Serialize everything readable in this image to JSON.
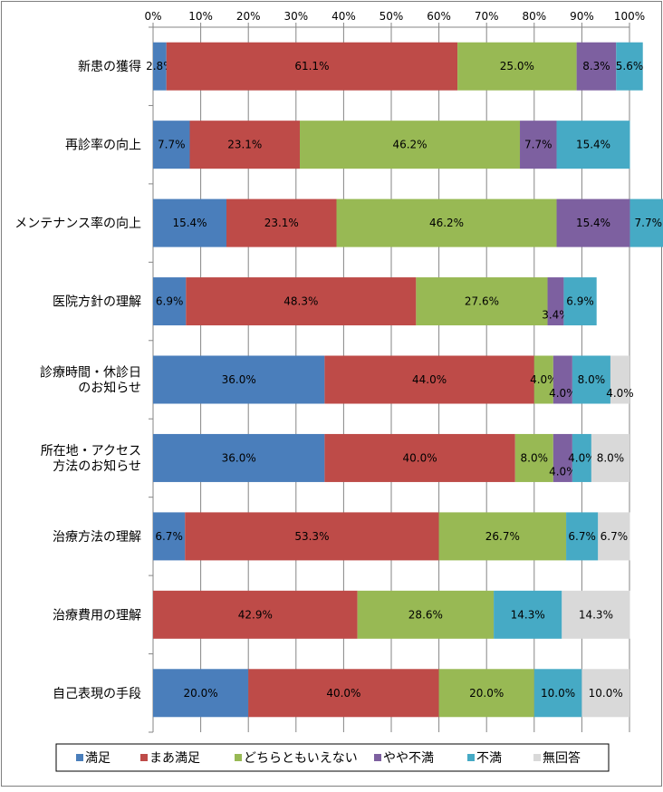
{
  "chart_data": {
    "type": "bar",
    "orientation": "horizontal",
    "stacked": "percent",
    "title": "",
    "xlabel": "",
    "ylabel": "",
    "xlim": [
      0,
      100
    ],
    "x_ticks": [
      "0%",
      "10%",
      "20%",
      "30%",
      "40%",
      "50%",
      "60%",
      "70%",
      "80%",
      "90%",
      "100%"
    ],
    "x_axis_position": "top",
    "grid": "vertical",
    "legend_position": "bottom",
    "categories": [
      [
        "新患の獲得"
      ],
      [
        "再診率の向上"
      ],
      [
        "メンテナンス率の向上"
      ],
      [
        "医院方針の理解"
      ],
      [
        "診療時間・休診日",
        "のお知らせ"
      ],
      [
        "所在地・アクセス",
        "方法のお知らせ"
      ],
      [
        "治療方法の理解"
      ],
      [
        "治療費用の理解"
      ],
      [
        "自己表現の手段"
      ]
    ],
    "series": [
      {
        "name": "満足",
        "color": "#4a7ebb",
        "values": [
          2.8,
          7.7,
          15.4,
          6.9,
          36.0,
          36.0,
          6.7,
          0,
          20.0
        ]
      },
      {
        "name": "まあ満足",
        "color": "#be4b48",
        "values": [
          61.1,
          23.1,
          23.1,
          48.3,
          44.0,
          40.0,
          53.3,
          42.9,
          40.0
        ]
      },
      {
        "name": "どちらともいえない",
        "color": "#98b954",
        "values": [
          25.0,
          46.2,
          46.2,
          27.6,
          4.0,
          8.0,
          26.7,
          28.6,
          20.0
        ]
      },
      {
        "name": "やや不満",
        "color": "#7d60a0",
        "values": [
          8.3,
          7.7,
          15.4,
          3.4,
          4.0,
          4.0,
          0,
          0,
          0
        ]
      },
      {
        "name": "不満",
        "color": "#46aac5",
        "values": [
          5.6,
          15.4,
          7.7,
          6.9,
          8.0,
          4.0,
          6.7,
          14.3,
          10.0
        ]
      },
      {
        "name": "無回答",
        "color": "#d9d9d9",
        "values": [
          0,
          0,
          0,
          0,
          4.0,
          8.0,
          6.7,
          14.3,
          10.0
        ]
      }
    ],
    "data_labels": [
      [
        "2.8%",
        "61.1%",
        "25.0%",
        "8.3%",
        "5.6%",
        ""
      ],
      [
        "7.7%",
        "23.1%",
        "46.2%",
        "7.7%",
        "15.4%",
        ""
      ],
      [
        "15.4%",
        "23.1%",
        "46.2%",
        "15.4%",
        "7.7%",
        ""
      ],
      [
        "6.9%",
        "48.3%",
        "27.6%",
        "3.4%",
        "6.9%",
        ""
      ],
      [
        "36.0%",
        "44.0%",
        "4.0%",
        "4.0%",
        "8.0%",
        "4.0%"
      ],
      [
        "36.0%",
        "40.0%",
        "8.0%",
        "4.0%",
        "4.0%",
        "8.0%"
      ],
      [
        "6.7%",
        "53.3%",
        "26.7%",
        "",
        "6.7%",
        "6.7%"
      ],
      [
        "",
        "42.9%",
        "28.6%",
        "",
        "14.3%",
        "14.3%"
      ],
      [
        "20.0%",
        "40.0%",
        "20.0%",
        "",
        "10.0%",
        "10.0%"
      ]
    ]
  }
}
